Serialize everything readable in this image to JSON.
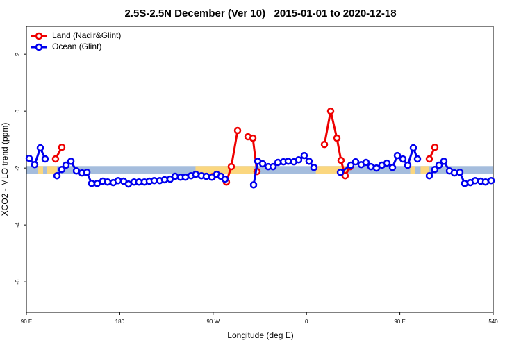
{
  "chart_data": {
    "type": "line",
    "title": "2.5S-2.5N December (Ver 10)   2015-01-01 to 2020-12-18",
    "xlabel": "Longitude (deg E)",
    "ylabel": "XCO2 - MLO trend (ppm)",
    "xlim": [
      90,
      540
    ],
    "ylim": [
      -7.07,
      2.98
    ],
    "xticks": [
      {
        "value": 90,
        "label": "90 E"
      },
      180,
      {
        "value": 270,
        "label": "90 W"
      },
      {
        "value": 360,
        "label": "0"
      },
      {
        "value": 450,
        "label": "90 E"
      },
      540
    ],
    "yticks": [
      2,
      0,
      -2,
      -4,
      -6
    ],
    "legend": "top-left",
    "band": {
      "ylim": [
        -2.2,
        -1.93
      ],
      "color": "#a5bddd",
      "land_color": "#fbd77f",
      "land": [
        [
          101.4,
          106.1
        ],
        [
          110,
          119.5
        ],
        [
          253,
          309
        ],
        [
          369,
          399
        ],
        [
          460,
          465
        ],
        [
          470,
          478
        ]
      ]
    },
    "series": [
      {
        "name": "Land (Nadir&Glint)",
        "color": "#ee0000",
        "x": [
          118.1,
          124.1,
          null,
          269.5,
          null,
          282.8,
          287.5,
          293.6,
          null,
          303.6,
          308.3,
          312.3,
          null,
          377.3,
          383.3,
          389.3,
          393.3,
          397.3,
          402.0,
          null,
          478.4,
          483.7
        ],
        "values": [
          -1.68,
          -1.27,
          null,
          -2.3,
          null,
          -2.49,
          -1.95,
          -0.68,
          null,
          -0.9,
          -0.95,
          -2.12,
          null,
          -1.17,
          0.0,
          -0.95,
          -1.73,
          -2.27,
          -1.95,
          null,
          -1.68,
          -1.27
        ]
      },
      {
        "name": "Ocean (Glint)",
        "color": "#0000ee",
        "x": [
          92.7,
          98.0,
          103.4,
          108.1,
          null,
          119.5,
          124.1,
          128.2,
          132.9,
          138.2,
          143.6,
          148.3,
          152.9,
          158.3,
          163.6,
          168.3,
          173.7,
          178.4,
          183.7,
          188.4,
          193.8,
          198.5,
          203.8,
          208.5,
          213.2,
          218.6,
          223.2,
          228.6,
          233.3,
          238.6,
          243.3,
          248.7,
          253.3,
          258.7,
          263.4,
          268.8,
          273.4,
          277.5,
          281.5,
          null,
          309.0,
          313.0,
          317.7,
          323.1,
          327.8,
          332.5,
          337.8,
          342.4,
          347.8,
          352.5,
          357.8,
          362.5,
          367.2,
          null,
          392.7,
          402.7,
          407.4,
          412.7,
          417.4,
          422.1,
          427.5,
          432.8,
          437.5,
          442.9,
          447.6,
          452.9,
          457.6,
          463.0,
          467.0,
          null,
          478.4,
          483.7,
          487.8,
          492.4,
          497.8,
          502.5,
          507.8,
          512.5,
          517.9,
          522.6,
          528.0,
          532.6,
          538.0
        ],
        "values": [
          -1.66,
          -1.88,
          -1.29,
          -1.68,
          null,
          -2.27,
          -2.05,
          -1.9,
          -1.76,
          -2.1,
          -2.17,
          -2.15,
          -2.54,
          -2.54,
          -2.46,
          -2.49,
          -2.51,
          -2.44,
          -2.46,
          -2.56,
          -2.49,
          -2.49,
          -2.49,
          -2.46,
          -2.44,
          -2.44,
          -2.41,
          -2.39,
          -2.29,
          -2.32,
          -2.32,
          -2.27,
          -2.22,
          -2.27,
          -2.29,
          -2.32,
          -2.22,
          -2.29,
          -2.39,
          null,
          -2.59,
          -1.76,
          -1.85,
          -1.95,
          -1.95,
          -1.8,
          -1.78,
          -1.76,
          -1.78,
          -1.71,
          -1.56,
          -1.76,
          -1.98,
          null,
          -2.15,
          -1.9,
          -1.78,
          -1.88,
          -1.8,
          -1.95,
          -2.0,
          -1.9,
          -1.83,
          -1.98,
          -1.56,
          -1.68,
          -1.9,
          -1.29,
          -1.68,
          null,
          -2.27,
          -2.05,
          -1.9,
          -1.76,
          -2.1,
          -2.17,
          -2.15,
          -2.54,
          -2.51,
          -2.44,
          -2.46,
          -2.49,
          -2.44
        ]
      }
    ]
  }
}
